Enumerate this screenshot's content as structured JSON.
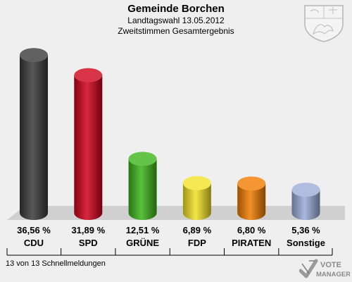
{
  "header": {
    "title": "Gemeinde Borchen",
    "subtitle1": "Landtagswahl 13.05.2012",
    "subtitle2": "Zweitstimmen Gesamtergebnis"
  },
  "chart_data": {
    "type": "bar",
    "title": "Gemeinde Borchen",
    "categories": [
      "CDU",
      "SPD",
      "GRÜNE",
      "FDP",
      "PIRATEN",
      "Sonstige"
    ],
    "values": [
      36.56,
      31.89,
      12.51,
      6.89,
      6.8,
      5.36
    ],
    "value_labels": [
      "36,56 %",
      "31,89 %",
      "12,51 %",
      "6,89 %",
      "6,80 %",
      "5,36 %"
    ],
    "colors": [
      "#3a3a3a",
      "#d0021b",
      "#3db51a",
      "#f2e227",
      "#f07c00",
      "#9cacd8"
    ],
    "ylim": [
      0,
      40
    ],
    "grid": false,
    "legend": "none"
  },
  "footer": {
    "reporting": "13 von 13 Schnellmeldungen"
  },
  "logo": {
    "line1": "VOTE",
    "line2": "MANAGER"
  }
}
